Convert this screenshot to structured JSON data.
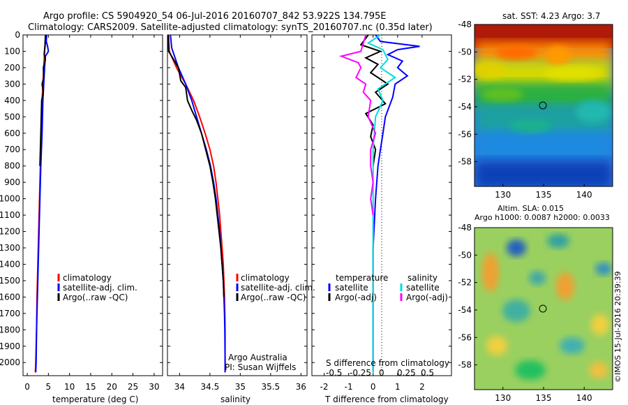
{
  "title_line1": "Argo profile: CS 5904920_54 06-Jul-2016 20160707_842 53.922S 134.795E",
  "title_line2": "Climatology: CARS2009. Satellite-adjusted climatology: synTS_20160707.nc (0.35d later)",
  "chart_data": [
    {
      "type": "line",
      "id": "temperature",
      "xlabel": "temperature (deg C)",
      "ylabel": "",
      "xlim": [
        -1,
        32
      ],
      "ylim": [
        2080,
        0
      ],
      "xticks": [
        0,
        5,
        10,
        15,
        20,
        25,
        30
      ],
      "yticks": [
        0,
        100,
        200,
        300,
        400,
        500,
        600,
        700,
        800,
        900,
        1000,
        1100,
        1200,
        1300,
        1400,
        1500,
        1600,
        1700,
        1800,
        1900,
        2000
      ],
      "legend": [
        "climatology",
        "satellite-adj. clim.",
        "Argo(..raw -QC)"
      ],
      "series": [
        {
          "name": "climatology",
          "color": "#ff0000",
          "points": [
            [
              4.5,
              0
            ],
            [
              4.3,
              50
            ],
            [
              4.1,
              100
            ],
            [
              3.9,
              200
            ],
            [
              3.7,
              300
            ],
            [
              3.5,
              400
            ],
            [
              3.3,
              600
            ],
            [
              3.1,
              800
            ],
            [
              2.9,
              1000
            ],
            [
              2.7,
              1200
            ],
            [
              2.5,
              1400
            ],
            [
              2.3,
              1600
            ],
            [
              2.2,
              1800
            ],
            [
              2.0,
              2000
            ],
            [
              1.9,
              2060
            ]
          ]
        },
        {
          "name": "satellite-adj. clim.",
          "color": "#0000ff",
          "points": [
            [
              4.6,
              0
            ],
            [
              4.5,
              40
            ],
            [
              4.8,
              70
            ],
            [
              5.0,
              100
            ],
            [
              4.3,
              130
            ],
            [
              4.1,
              200
            ],
            [
              3.9,
              300
            ],
            [
              3.7,
              400
            ],
            [
              3.5,
              600
            ],
            [
              3.2,
              800
            ],
            [
              3.0,
              1000
            ],
            [
              2.8,
              1200
            ],
            [
              2.6,
              1400
            ],
            [
              2.4,
              1600
            ],
            [
              2.2,
              1800
            ],
            [
              2.1,
              2000
            ],
            [
              2.0,
              2060
            ]
          ]
        },
        {
          "name": "Argo(..raw -QC)",
          "color": "#000000",
          "points": [
            [
              4.3,
              0
            ],
            [
              4.2,
              60
            ],
            [
              4.0,
              120
            ],
            [
              4.3,
              150
            ],
            [
              3.8,
              200
            ],
            [
              3.9,
              260
            ],
            [
              3.5,
              300
            ],
            [
              3.8,
              350
            ],
            [
              3.4,
              400
            ],
            [
              3.3,
              500
            ],
            [
              3.2,
              600
            ],
            [
              3.0,
              800
            ]
          ]
        }
      ]
    },
    {
      "type": "line",
      "id": "salinity",
      "xlabel": "salinity",
      "ylabel": "",
      "xlim": [
        33.8,
        36.1
      ],
      "ylim": [
        2080,
        0
      ],
      "xticks": [
        34,
        34.5,
        35,
        35.5,
        36
      ],
      "legend": [
        "climatology",
        "satellite-adj. clim.",
        "Argo(..raw -QC)"
      ],
      "series": [
        {
          "name": "climatology",
          "color": "#ff0000",
          "points": [
            [
              33.82,
              0
            ],
            [
              33.83,
              100
            ],
            [
              33.95,
              200
            ],
            [
              34.1,
              300
            ],
            [
              34.23,
              400
            ],
            [
              34.33,
              500
            ],
            [
              34.42,
              600
            ],
            [
              34.5,
              700
            ],
            [
              34.56,
              800
            ],
            [
              34.6,
              900
            ],
            [
              34.63,
              1000
            ],
            [
              34.66,
              1100
            ],
            [
              34.68,
              1200
            ],
            [
              34.7,
              1300
            ],
            [
              34.72,
              1400
            ],
            [
              34.73,
              1500
            ],
            [
              34.74,
              1600
            ],
            [
              34.745,
              1700
            ],
            [
              34.75,
              1800
            ],
            [
              34.75,
              2000
            ],
            [
              34.75,
              2060
            ]
          ]
        },
        {
          "name": "satellite-adj. clim.",
          "color": "#0000ff",
          "points": [
            [
              33.85,
              0
            ],
            [
              33.87,
              80
            ],
            [
              33.98,
              200
            ],
            [
              34.1,
              300
            ],
            [
              34.2,
              400
            ],
            [
              34.28,
              500
            ],
            [
              34.36,
              600
            ],
            [
              34.44,
              700
            ],
            [
              34.51,
              800
            ],
            [
              34.56,
              900
            ],
            [
              34.6,
              1000
            ],
            [
              34.63,
              1100
            ],
            [
              34.66,
              1200
            ],
            [
              34.68,
              1300
            ],
            [
              34.7,
              1400
            ],
            [
              34.72,
              1500
            ],
            [
              34.73,
              1600
            ],
            [
              34.74,
              1700
            ],
            [
              34.745,
              1800
            ],
            [
              34.75,
              2000
            ],
            [
              34.75,
              2060
            ]
          ]
        },
        {
          "name": "Argo(..raw -QC)",
          "color": "#000000",
          "points": [
            [
              33.81,
              0
            ],
            [
              33.82,
              100
            ],
            [
              33.9,
              150
            ],
            [
              33.98,
              200
            ],
            [
              34.02,
              280
            ],
            [
              34.1,
              320
            ],
            [
              34.13,
              400
            ],
            [
              34.2,
              460
            ],
            [
              34.28,
              520
            ],
            [
              34.36,
              600
            ],
            [
              34.43,
              700
            ],
            [
              34.5,
              800
            ],
            [
              34.55,
              900
            ],
            [
              34.59,
              1000
            ],
            [
              34.62,
              1100
            ],
            [
              34.65,
              1200
            ],
            [
              34.68,
              1300
            ],
            [
              34.7,
              1400
            ],
            [
              34.72,
              1500
            ],
            [
              34.73,
              1600
            ]
          ]
        }
      ]
    },
    {
      "type": "line",
      "id": "difference",
      "xlabel": "T difference from climatology",
      "xlabel_top": "S difference from climatology",
      "xlim": [
        -2.5,
        3.2
      ],
      "ylim": [
        2080,
        0
      ],
      "xticks": [
        -2,
        -1,
        0,
        1,
        2
      ],
      "xticks_s": [
        "-0.5",
        "-0.25",
        "0",
        "0.25",
        "0.5"
      ],
      "legend_titles": [
        "temperature",
        "salinity"
      ],
      "legend": [
        "satellite",
        "Argo(-adj)",
        "satellite",
        "Argo(-adj)"
      ],
      "series": [
        {
          "name": "satellite",
          "color": "#0000ff",
          "points": [
            [
              0.1,
              0
            ],
            [
              0.3,
              40
            ],
            [
              1.9,
              70
            ],
            [
              1.0,
              90
            ],
            [
              0.6,
              120
            ],
            [
              1.2,
              160
            ],
            [
              1.0,
              200
            ],
            [
              1.4,
              250
            ],
            [
              0.9,
              300
            ],
            [
              0.8,
              380
            ],
            [
              0.5,
              500
            ],
            [
              0.4,
              600
            ],
            [
              0.3,
              700
            ],
            [
              0.2,
              800
            ],
            [
              0.1,
              1000
            ],
            [
              0.0,
              1300
            ],
            [
              0.0,
              2060
            ]
          ]
        },
        {
          "name": "Argo(-adj)",
          "color": "#000000",
          "points": [
            [
              -0.2,
              0
            ],
            [
              -0.5,
              60
            ],
            [
              0.3,
              100
            ],
            [
              -0.3,
              140
            ],
            [
              0.2,
              180
            ],
            [
              -0.1,
              230
            ],
            [
              0.6,
              300
            ],
            [
              0.1,
              350
            ],
            [
              0.5,
              420
            ],
            [
              -0.3,
              480
            ],
            [
              0.0,
              550
            ],
            [
              -0.1,
              620
            ],
            [
              0.1,
              700
            ],
            [
              0.0,
              800
            ]
          ]
        },
        {
          "name": "satellite",
          "color": "#00dddd",
          "points": [
            [
              0.3,
              0
            ],
            [
              -0.2,
              50
            ],
            [
              0.4,
              90
            ],
            [
              0.6,
              150
            ],
            [
              0.3,
              200
            ],
            [
              0.9,
              260
            ],
            [
              0.2,
              330
            ],
            [
              0.4,
              400
            ],
            [
              0.1,
              500
            ],
            [
              0.0,
              700
            ],
            [
              0.0,
              2060
            ]
          ]
        },
        {
          "name": "Argo(-adj)",
          "color": "#ff00ff",
          "points": [
            [
              -0.3,
              0
            ],
            [
              -0.5,
              100
            ],
            [
              -1.3,
              130
            ],
            [
              -0.6,
              170
            ],
            [
              -0.5,
              200
            ],
            [
              -0.7,
              260
            ],
            [
              -0.3,
              300
            ],
            [
              -0.4,
              350
            ],
            [
              -0.1,
              400
            ],
            [
              -0.2,
              500
            ],
            [
              0.1,
              600
            ],
            [
              -0.1,
              700
            ],
            [
              -0.1,
              800
            ],
            [
              0.0,
              900
            ],
            [
              -0.1,
              1000
            ],
            [
              0.0,
              1100
            ]
          ]
        }
      ]
    },
    {
      "type": "heatmap",
      "id": "sst-map",
      "title": "sat. SST: 4.23  Argo: 3.7",
      "xlim": [
        126.5,
        143.5
      ],
      "ylim": [
        -59.8,
        -48
      ],
      "xticks": [
        130,
        135,
        140
      ],
      "yticks": [
        -48,
        -50,
        -52,
        -54,
        -56,
        -58
      ],
      "marker": [
        134.8,
        -53.9
      ]
    },
    {
      "type": "heatmap",
      "id": "sla-map",
      "title_line1": "Altim. SLA: 0.015",
      "title_line2": "Argo h1000: 0.0087  h2000: 0.0033",
      "xlim": [
        126.5,
        143.5
      ],
      "ylim": [
        -59.8,
        -48
      ],
      "xticks": [
        130,
        135,
        140
      ],
      "yticks": [
        -48,
        -50,
        -52,
        -54,
        -56,
        -58
      ],
      "marker": [
        134.8,
        -53.9
      ]
    }
  ],
  "footer": "©IMOS 15-Jul-2016 20:39:39",
  "annotation": {
    "line1": "Argo Australia",
    "line2": "PI: Susan Wijffels"
  }
}
